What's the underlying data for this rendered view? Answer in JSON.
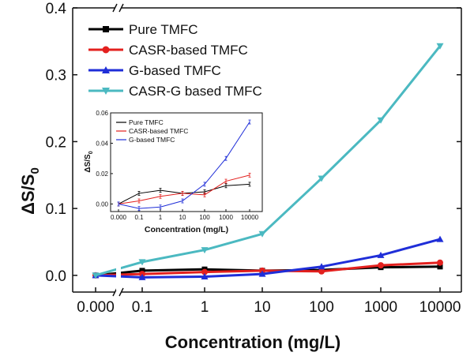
{
  "chart_data": [
    {
      "type": "line",
      "ylabel": "ΔS/S0",
      "ylabel_main": "ΔS/S",
      "ylabel_sub": "0",
      "xlabel": "Concentration (mg/L)",
      "categories": [
        "0.000",
        "0.1",
        "1",
        "10",
        "100",
        "1000",
        "10000"
      ],
      "ylim": [
        -0.025,
        0.4
      ],
      "yticks": [
        "0.0",
        "0.1",
        "0.2",
        "0.3",
        "0.4"
      ],
      "ytick_values": [
        0.0,
        0.1,
        0.2,
        0.3,
        0.4
      ],
      "axis_break": "between 0.000 and 0.1",
      "legend_position": "top-left",
      "series": [
        {
          "name": "Pure TMFC",
          "color": "#000000",
          "marker": "square",
          "values": [
            0.0,
            0.007,
            0.009,
            0.007,
            0.008,
            0.012,
            0.013
          ]
        },
        {
          "name": "CASR-based TMFC",
          "color": "#e3201e",
          "marker": "circle",
          "values": [
            0.0,
            0.002,
            0.005,
            0.007,
            0.006,
            0.015,
            0.019
          ]
        },
        {
          "name": "G-based TMFC",
          "color": "#1f2ed8",
          "marker": "triangle-up",
          "values": [
            0.0,
            -0.003,
            -0.002,
            0.002,
            0.013,
            0.03,
            0.054
          ]
        },
        {
          "name": "CASR-G based TMFC",
          "color": "#4bb9c1",
          "marker": "triangle-down",
          "values": [
            0.0,
            0.02,
            0.038,
            0.062,
            0.145,
            0.232,
            0.343
          ]
        }
      ]
    },
    {
      "type": "line",
      "ylabel": "ΔS/S0",
      "ylabel_main": "ΔS/S",
      "ylabel_sub": "0",
      "xlabel": "Concentration (mg/L)",
      "categories": [
        "0.000",
        "0.1",
        "1",
        "10",
        "100",
        "1000",
        "10000"
      ],
      "ylim": [
        -0.005,
        0.06
      ],
      "yticks": [
        "0.00",
        "0.02",
        "0.04",
        "0.06"
      ],
      "ytick_values": [
        0.0,
        0.02,
        0.04,
        0.06
      ],
      "legend_position": "top-left",
      "series": [
        {
          "name": "Pure TMFC",
          "color": "#000000",
          "values": [
            0.0,
            0.007,
            0.009,
            0.007,
            0.008,
            0.012,
            0.013
          ]
        },
        {
          "name": "CASR-based TMFC",
          "color": "#e3201e",
          "values": [
            0.0,
            0.002,
            0.005,
            0.007,
            0.006,
            0.015,
            0.019
          ]
        },
        {
          "name": "G-based TMFC",
          "color": "#1f2ed8",
          "values": [
            0.0,
            -0.003,
            -0.002,
            0.002,
            0.013,
            0.03,
            0.054
          ]
        }
      ]
    }
  ]
}
